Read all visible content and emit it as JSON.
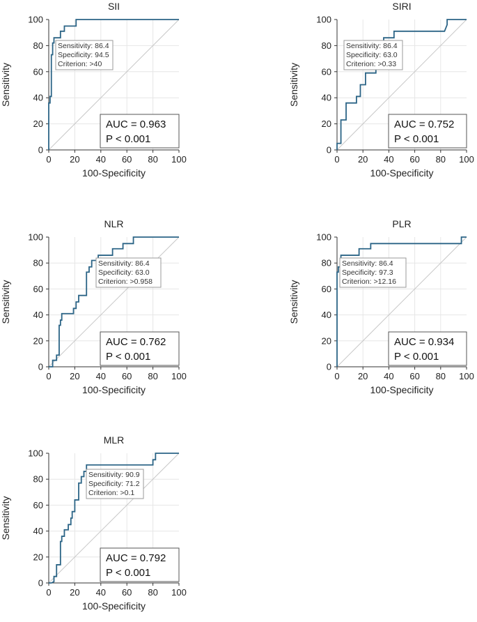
{
  "chart_data": [
    {
      "type": "line",
      "title": "SII",
      "xlabel": "100-Specificity",
      "ylabel": "Sensitivity",
      "xlim": [
        0,
        100
      ],
      "ylim": [
        0,
        100
      ],
      "xticks": [
        "0",
        "20",
        "40",
        "60",
        "80",
        "100"
      ],
      "yticks": [
        "0",
        "20",
        "40",
        "60",
        "80",
        "100"
      ],
      "auc_text": "AUC = 0.963",
      "p_text": "P < 0.001",
      "criterion": [
        "Sensitivity: 86.4",
        "Specificity: 94.5",
        "Criterion: >40"
      ],
      "series": [
        {
          "name": "ROC",
          "x": [
            0,
            0,
            1,
            1,
            2,
            2,
            3,
            3,
            4,
            4,
            9,
            9,
            12,
            12,
            16,
            16,
            21,
            21,
            100
          ],
          "y": [
            0,
            36,
            36,
            41,
            41,
            73,
            73,
            82,
            82,
            86,
            86,
            91,
            91,
            95,
            95,
            95,
            95,
            100,
            100
          ]
        }
      ]
    },
    {
      "type": "line",
      "title": "SIRI",
      "xlabel": "100-Specificity",
      "ylabel": "Sensitivity",
      "xlim": [
        0,
        100
      ],
      "ylim": [
        0,
        100
      ],
      "xticks": [
        "0",
        "20",
        "40",
        "60",
        "80",
        "100"
      ],
      "yticks": [
        "0",
        "20",
        "40",
        "60",
        "80",
        "100"
      ],
      "auc_text": "AUC = 0.752",
      "p_text": "P < 0.001",
      "criterion": [
        "Sensitivity: 86.4",
        "Specificity: 63.0",
        "Criterion: >0.33"
      ],
      "series": [
        {
          "name": "ROC",
          "x": [
            0,
            0,
            3,
            3,
            7,
            7,
            15,
            15,
            18,
            18,
            22,
            22,
            26,
            26,
            30,
            30,
            34,
            34,
            36,
            36,
            44,
            44,
            83,
            85,
            85,
            100
          ],
          "y": [
            0,
            5,
            5,
            23,
            23,
            36,
            36,
            41,
            41,
            50,
            50,
            59,
            59,
            59,
            59,
            73,
            73,
            77,
            77,
            86,
            86,
            91,
            91,
            96,
            100,
            100
          ]
        }
      ]
    },
    {
      "type": "line",
      "title": "NLR",
      "xlabel": "100-Specificity",
      "ylabel": "Sensitivity",
      "xlim": [
        0,
        100
      ],
      "ylim": [
        0,
        100
      ],
      "xticks": [
        "0",
        "20",
        "40",
        "60",
        "80",
        "100"
      ],
      "yticks": [
        "0",
        "20",
        "40",
        "60",
        "80",
        "100"
      ],
      "auc_text": "AUC = 0.762",
      "p_text": "P < 0.001",
      "criterion": [
        "Sensitivity: 86.4",
        "Specificity: 63.0",
        "Criterion: >0.958"
      ],
      "series": [
        {
          "name": "ROC",
          "x": [
            0,
            2,
            3,
            3,
            6,
            6,
            8,
            8,
            9,
            9,
            10,
            10,
            19,
            19,
            21,
            21,
            23,
            23,
            29,
            29,
            31,
            31,
            33,
            33,
            38,
            38,
            49,
            49,
            57,
            57,
            65,
            65,
            100
          ],
          "y": [
            0,
            0,
            0,
            5,
            5,
            9,
            9,
            32,
            32,
            36,
            36,
            41,
            41,
            45,
            45,
            50,
            50,
            55,
            55,
            73,
            73,
            77,
            77,
            82,
            82,
            86,
            86,
            91,
            91,
            95,
            95,
            100,
            100
          ]
        }
      ]
    },
    {
      "type": "line",
      "title": "PLR",
      "xlabel": "100-Specificity",
      "ylabel": "Sensitivity",
      "xlim": [
        0,
        100
      ],
      "ylim": [
        0,
        100
      ],
      "xticks": [
        "0",
        "20",
        "40",
        "60",
        "80",
        "100"
      ],
      "yticks": [
        "0",
        "20",
        "40",
        "60",
        "80",
        "100"
      ],
      "auc_text": "AUC = 0.934",
      "p_text": "P < 0.001",
      "criterion": [
        "Sensitivity: 86.4",
        "Specificity: 97.3",
        "Criterion: >12.16"
      ],
      "series": [
        {
          "name": "ROC",
          "x": [
            0,
            0,
            1,
            1,
            3,
            3,
            17,
            17,
            26,
            26,
            96,
            96,
            100
          ],
          "y": [
            0,
            73,
            73,
            77,
            77,
            86,
            86,
            91,
            91,
            95,
            95,
            100,
            100
          ]
        }
      ]
    },
    {
      "type": "line",
      "title": "MLR",
      "xlabel": "100-Specificity",
      "ylabel": "Sensitivity",
      "xlim": [
        0,
        100
      ],
      "ylim": [
        0,
        100
      ],
      "xticks": [
        "0",
        "20",
        "40",
        "60",
        "80",
        "100"
      ],
      "yticks": [
        "0",
        "20",
        "40",
        "60",
        "80",
        "100"
      ],
      "auc_text": "AUC = 0.792",
      "p_text": "P < 0.001",
      "criterion": [
        "Sensitivity: 90.9",
        "Specificity: 71.2",
        "Criterion: >0.1"
      ],
      "series": [
        {
          "name": "ROC",
          "x": [
            0,
            2,
            4,
            4,
            6,
            6,
            9,
            9,
            10,
            10,
            12,
            12,
            15,
            15,
            17,
            17,
            18,
            18,
            20,
            20,
            23,
            23,
            25,
            25,
            27,
            27,
            29,
            29,
            80,
            80,
            82,
            82,
            100
          ],
          "y": [
            0,
            0,
            1,
            5,
            5,
            14,
            14,
            32,
            32,
            36,
            36,
            41,
            41,
            45,
            45,
            50,
            50,
            55,
            55,
            64,
            64,
            77,
            77,
            82,
            82,
            86,
            86,
            91,
            91,
            95,
            95,
            100,
            100
          ]
        }
      ]
    }
  ]
}
